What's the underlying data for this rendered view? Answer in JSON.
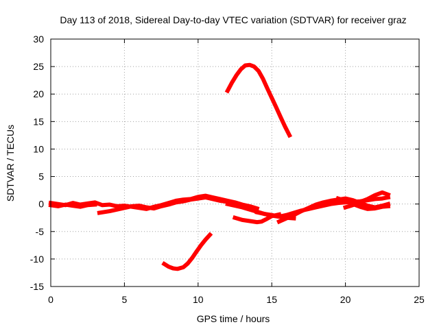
{
  "chart_data": {
    "type": "scatter",
    "title": "Day 113 of 2018, Sidereal Day-to-day VTEC variation (SDTVAR) for receiver graz",
    "xlabel": "GPS time / hours",
    "ylabel": "SDTVAR / TECUs",
    "xlim": [
      0,
      25
    ],
    "ylim": [
      -15,
      30
    ],
    "xticks": [
      0,
      5,
      10,
      15,
      20,
      25
    ],
    "yticks": [
      -15,
      -10,
      -5,
      0,
      5,
      10,
      15,
      20,
      25,
      30
    ],
    "xtick_labels": [
      "0",
      "5",
      "10",
      "15",
      "20",
      "25"
    ],
    "ytick_labels": [
      "-15",
      "-10",
      "-5",
      "0",
      "5",
      "10",
      "15",
      "20",
      "25",
      "30"
    ],
    "grid": true,
    "legend": "none",
    "series_color": "#ff0000",
    "series": [
      {
        "name": "arc-main-1",
        "x": [
          0,
          0.5,
          1,
          1.5,
          2,
          2.5,
          3,
          3.5,
          4,
          4.5,
          5,
          5.5,
          6,
          6.5,
          7,
          7.5,
          8,
          8.5,
          9,
          9.5,
          10,
          10.5,
          11,
          11.5,
          12,
          12.5,
          13,
          13.5,
          14
        ],
        "y": [
          0.2,
          0,
          -0.2,
          0.2,
          -0.1,
          0.1,
          0.3,
          -0.2,
          -0.1,
          -0.4,
          -0.3,
          -0.5,
          -0.7,
          -0.9,
          -0.5,
          -0.2,
          0.2,
          0.6,
          0.8,
          0.9,
          1.3,
          1.5,
          1.2,
          0.9,
          0.6,
          0.3,
          -0.1,
          -0.4,
          -0.8
        ]
      },
      {
        "name": "arc-main-2",
        "x": [
          0,
          0.5,
          1,
          1.5,
          2,
          2.5,
          3
        ],
        "y": [
          -0.2,
          -0.4,
          -0.1,
          -0.3,
          -0.5,
          -0.2,
          -0.1
        ]
      },
      {
        "name": "arc-main-3",
        "x": [
          3.3,
          4,
          4.5,
          5,
          5.5,
          6,
          6.5,
          7,
          7.5,
          8,
          8.5,
          9,
          9.5,
          10,
          10.5,
          11,
          11.5,
          12
        ],
        "y": [
          -1.6,
          -1.3,
          -1.0,
          -0.7,
          -0.4,
          -0.3,
          -0.6,
          -0.8,
          -0.4,
          -0.1,
          0.3,
          0.5,
          0.8,
          1.0,
          1.2,
          0.9,
          0.6,
          0.4
        ]
      },
      {
        "name": "arc-main-4",
        "x": [
          12,
          12.5,
          13,
          13.5,
          14,
          14.5,
          15,
          15.5,
          16,
          16.5
        ],
        "y": [
          0,
          -0.3,
          -0.6,
          -1.0,
          -1.4,
          -1.8,
          -2.0,
          -2.3,
          -2.5,
          -2.6
        ]
      },
      {
        "name": "arc-main-5",
        "x": [
          12.5,
          13,
          13.5,
          14,
          14.3,
          14.6,
          15,
          15.5
        ],
        "y": [
          -2.5,
          -2.9,
          -3.1,
          -3.3,
          -3.2,
          -2.8,
          -2.2,
          -1.9
        ]
      },
      {
        "name": "arc-main-6",
        "x": [
          14,
          14.5,
          15,
          15.5,
          16,
          16.5,
          17,
          17.5,
          18,
          18.5,
          19,
          19.5,
          20,
          20.5,
          21,
          21.5,
          22,
          22.5,
          22.9
        ],
        "y": [
          -1.5,
          -1.8,
          -2.1,
          -2.3,
          -2.0,
          -1.6,
          -1.2,
          -0.9,
          -0.6,
          -0.3,
          0.0,
          0.2,
          0.3,
          0.4,
          0.5,
          0.7,
          0.9,
          1.0,
          1.2
        ]
      },
      {
        "name": "arc-main-7",
        "x": [
          15.5,
          16,
          16.5,
          17,
          17.5,
          18,
          18.5,
          19,
          19.5,
          20,
          20.5,
          21,
          21.5,
          22,
          22.5,
          22.9
        ],
        "y": [
          -3.2,
          -2.6,
          -2.0,
          -1.3,
          -0.7,
          -0.1,
          0.3,
          0.6,
          0.8,
          1.0,
          0.7,
          0.2,
          -0.3,
          -0.6,
          -0.3,
          0.0
        ]
      },
      {
        "name": "arc-main-8",
        "x": [
          20,
          20.5,
          21,
          21.5,
          22,
          22.5,
          22.9
        ],
        "y": [
          -0.6,
          -0.2,
          0.4,
          0.9,
          1.6,
          2.1,
          1.7
        ]
      },
      {
        "name": "arc-main-9",
        "x": [
          19.5,
          20,
          20.5,
          21,
          21.5,
          22,
          22.5,
          22.9
        ],
        "y": [
          1.0,
          0.6,
          0.0,
          -0.5,
          -0.9,
          -0.8,
          -0.5,
          -0.4
        ]
      },
      {
        "name": "arc-low",
        "x": [
          7.7,
          8.0,
          8.3,
          8.6,
          9.0,
          9.3,
          9.6,
          9.9,
          10.2,
          10.5,
          10.8
        ],
        "y": [
          -10.9,
          -11.4,
          -11.7,
          -11.8,
          -11.5,
          -10.8,
          -9.8,
          -8.6,
          -7.5,
          -6.5,
          -5.6
        ]
      },
      {
        "name": "arc-high",
        "x": [
          12.0,
          12.3,
          12.6,
          12.9,
          13.2,
          13.5,
          13.8,
          14.1,
          14.4,
          14.7,
          15.0,
          15.3,
          15.6,
          15.9,
          16.2
        ],
        "y": [
          20.6,
          22.1,
          23.4,
          24.5,
          25.2,
          25.3,
          25.0,
          24.2,
          22.8,
          21.0,
          19.3,
          17.6,
          15.8,
          14.1,
          12.5
        ]
      }
    ]
  }
}
